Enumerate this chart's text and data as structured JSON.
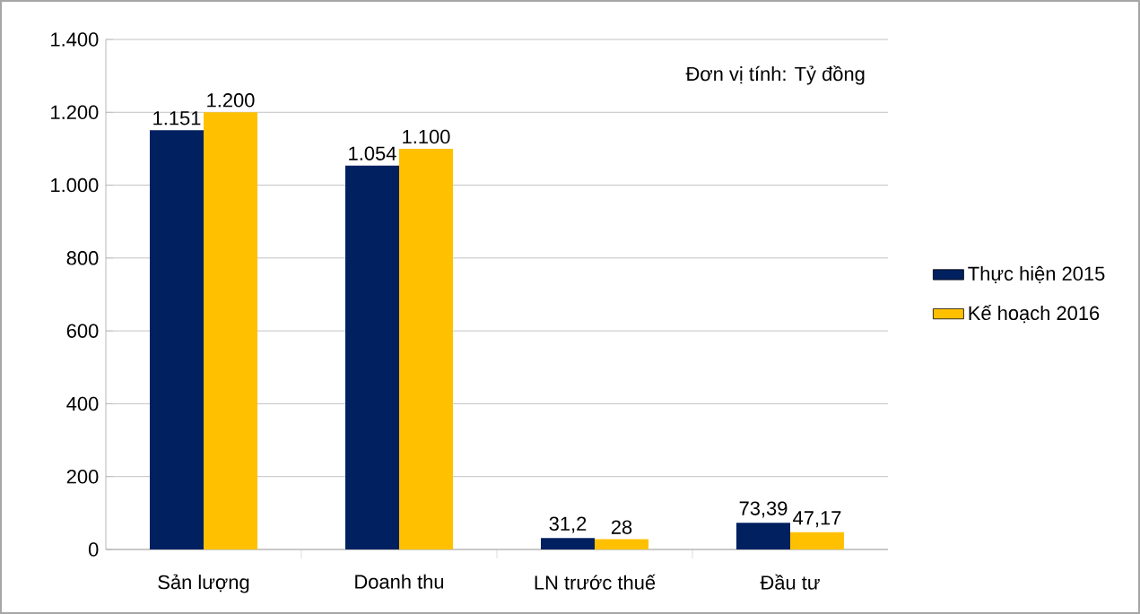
{
  "chart_data": {
    "type": "bar",
    "categories": [
      "Sản lượng",
      "Doanh thu",
      "LN trước thuế",
      "Đầu tư"
    ],
    "series": [
      {
        "name": "Thực hiện 2015",
        "color": "#002060",
        "values": [
          1151,
          1054,
          31.2,
          73.39
        ],
        "value_labels": [
          "1.151",
          "1.054",
          "31,2",
          "73,39"
        ]
      },
      {
        "name": "Kế hoạch 2016",
        "color": "#ffc000",
        "values": [
          1200,
          1100,
          28,
          47.17
        ],
        "value_labels": [
          "1.200",
          "1.100",
          "28",
          "47,17"
        ]
      }
    ],
    "ylim": [
      0,
      1400
    ],
    "yticks": [
      0,
      200,
      400,
      600,
      800,
      {
        "value": 1000,
        "label": "1.000"
      },
      {
        "value": 1200,
        "label": "1.200"
      },
      {
        "value": 1400,
        "label": "1.400"
      }
    ],
    "grid": "y",
    "legend": "right",
    "annotations": [
      "Đơn vị tính: Tỷ đồng"
    ]
  }
}
